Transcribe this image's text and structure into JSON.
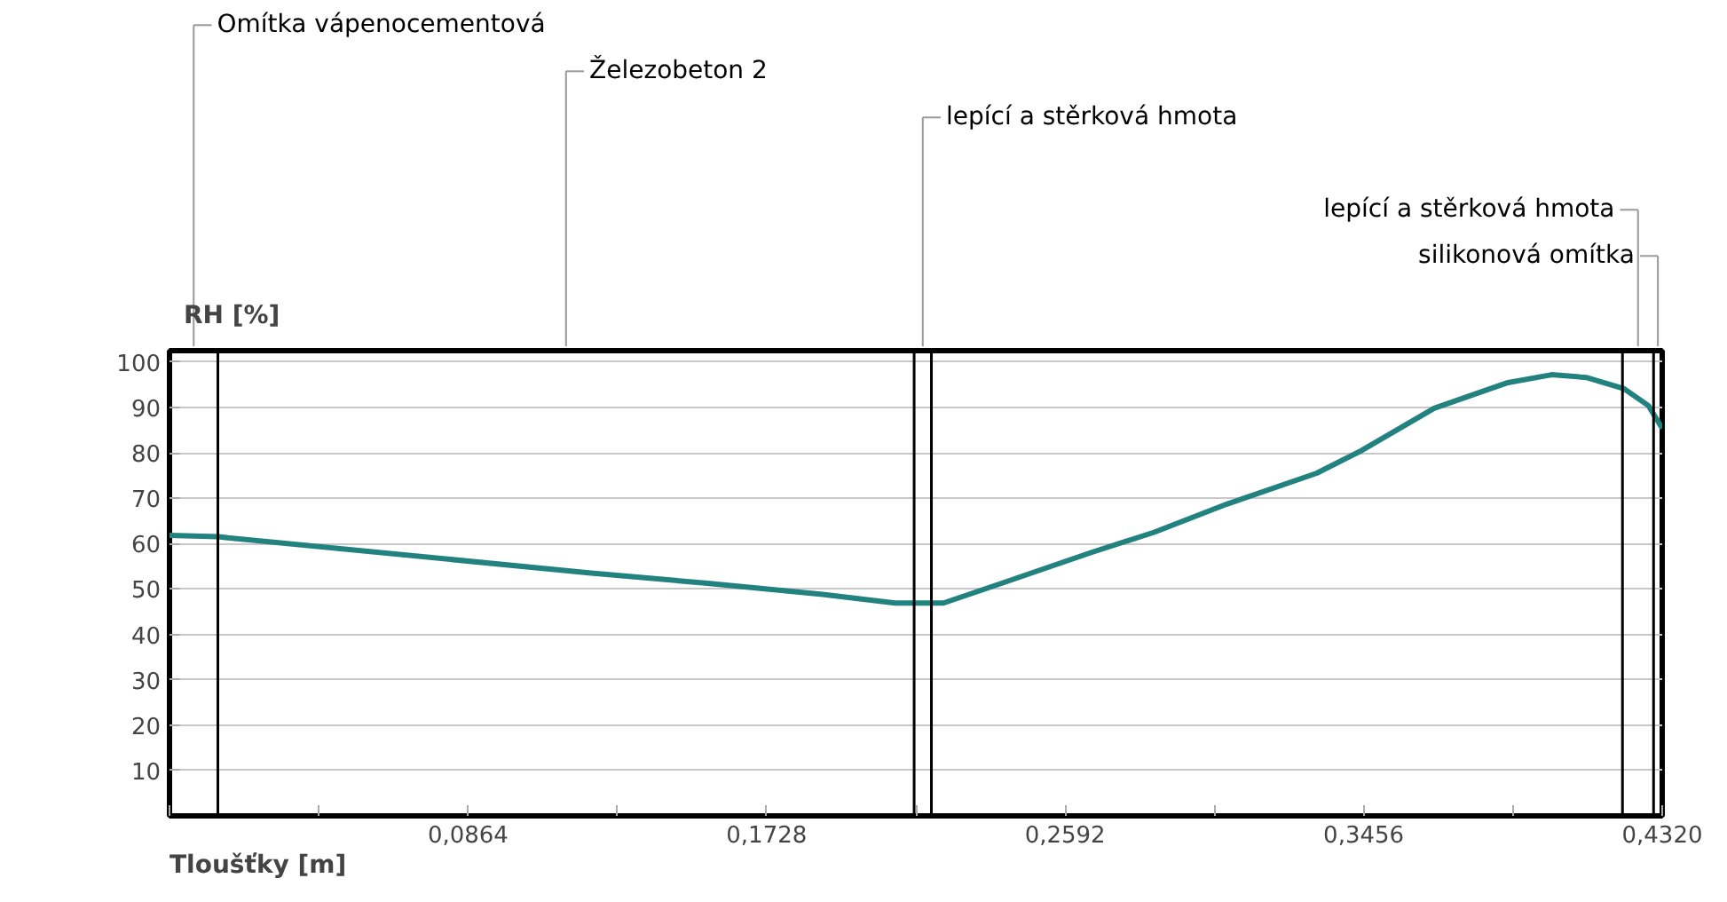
{
  "chart_data": {
    "type": "line",
    "xlabel": "Tloušťky [m]",
    "ylabel": "RH [%]",
    "x": [
      0,
      0.014,
      0.122,
      0.155,
      0.189,
      0.21,
      0.224,
      0.241,
      0.267,
      0.285,
      0.306,
      0.332,
      0.345,
      0.366,
      0.387,
      0.4,
      0.41,
      0.421,
      0.428,
      0.432
    ],
    "series": [
      {
        "color": "#21827f",
        "values": [
          61.8,
          61.5,
          53.5,
          51.3,
          48.8,
          46.9,
          46.9,
          51.3,
          58.1,
          62.5,
          68.7,
          75.5,
          80.5,
          89.8,
          95.4,
          97.2,
          96.6,
          94.1,
          90.4,
          85.4
        ]
      }
    ],
    "xlim": [
      0,
      0.432
    ],
    "ylim": [
      0,
      102.5
    ],
    "xticks": [
      {
        "value": 0,
        "label": null
      },
      {
        "value": 0.0432,
        "label": null
      },
      {
        "value": 0.0864,
        "label": "0,0864"
      },
      {
        "value": 0.1296,
        "label": null
      },
      {
        "value": 0.1728,
        "label": "0,1728"
      },
      {
        "value": 0.216,
        "label": null
      },
      {
        "value": 0.2592,
        "label": "0,2592"
      },
      {
        "value": 0.3024,
        "label": null
      },
      {
        "value": 0.3456,
        "label": "0,3456"
      },
      {
        "value": 0.3888,
        "label": null
      },
      {
        "value": 0.432,
        "label": "0,4320"
      }
    ],
    "yticks": [
      10,
      20,
      30,
      40,
      50,
      60,
      70,
      80,
      90,
      100
    ],
    "grid": "y",
    "marker": "none",
    "line_style": "solid",
    "ref_lines": [
      {
        "axis": "x",
        "value": 0.014,
        "color": "#000000"
      },
      {
        "axis": "x",
        "value": 0.2155,
        "color": "#000000"
      },
      {
        "axis": "x",
        "value": 0.2205,
        "color": "#000000"
      },
      {
        "axis": "x",
        "value": 0.4205,
        "color": "#000000"
      },
      {
        "axis": "x",
        "value": 0.4295,
        "color": "#000000"
      }
    ],
    "annotations": [
      "Omítka vápenocementová",
      "Železobeton 2",
      "lepící a stěrková hmota",
      null,
      "lepící a stěrková hmota",
      "silikonová omítka"
    ]
  }
}
